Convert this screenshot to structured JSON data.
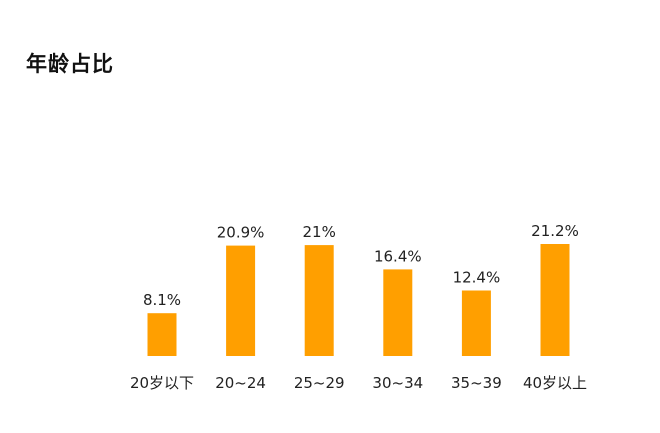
{
  "chart_data": {
    "type": "bar",
    "title": "年龄占比",
    "categories": [
      "20岁以下",
      "20~24",
      "25~29",
      "30~34",
      "35~39",
      "40岁以上"
    ],
    "values": [
      8.1,
      20.9,
      21,
      16.4,
      12.4,
      21.2
    ],
    "value_labels": [
      "8.1%",
      "20.9%",
      "21%",
      "16.4%",
      "12.4%",
      "21.2%"
    ],
    "ylim": [
      0,
      21.2
    ],
    "grid": false,
    "legend": "none",
    "bar_color": "#FF9F00"
  }
}
